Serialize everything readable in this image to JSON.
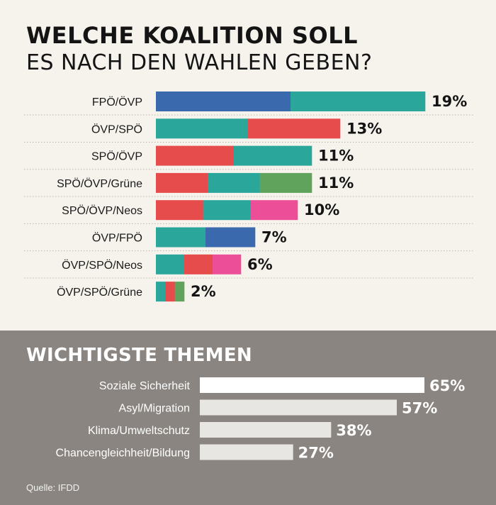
{
  "title_line1": "WELCHE KOALITION SOLL",
  "title_line2": "ES NACH DEN WAHLEN GEBEN?",
  "colors": {
    "fpo": "#3a6aad",
    "ovp": "#2aa79a",
    "spo": "#e74c4c",
    "gruene": "#5fa35c",
    "neos": "#ec4f98",
    "theme_top": "#ffffff",
    "theme_other": "#e8e6e3"
  },
  "chart_data": [
    {
      "type": "bar",
      "orientation": "horizontal",
      "stacked": true,
      "categories": [
        "FPÖ/ÖVP",
        "ÖVP/SPÖ",
        "SPÖ/ÖVP",
        "SPÖ/ÖVP/Grüne",
        "SPÖ/ÖVP/Neos",
        "ÖVP/FPÖ",
        "ÖVP/SPÖ/Neos",
        "ÖVP/SPÖ/Grüne"
      ],
      "values": [
        19,
        13,
        11,
        11,
        10,
        7,
        6,
        2
      ],
      "value_labels": [
        "19%",
        "13%",
        "11%",
        "11%",
        "10%",
        "7%",
        "6%",
        "2%"
      ],
      "segments": [
        [
          "fpo",
          "ovp"
        ],
        [
          "ovp",
          "spo"
        ],
        [
          "spo",
          "ovp"
        ],
        [
          "spo",
          "ovp",
          "gruene"
        ],
        [
          "spo",
          "ovp",
          "neos"
        ],
        [
          "ovp",
          "fpo"
        ],
        [
          "ovp",
          "spo",
          "neos"
        ],
        [
          "ovp",
          "spo",
          "gruene"
        ]
      ],
      "xlim": [
        0,
        19
      ]
    },
    {
      "type": "bar",
      "orientation": "horizontal",
      "title": "WICHTIGSTE THEMEN",
      "categories": [
        "Soziale Sicherheit",
        "Asyl/Migration",
        "Klima/Umweltschutz",
        "Chancengleichheit/Bildung"
      ],
      "values": [
        65,
        57,
        38,
        27
      ],
      "value_labels": [
        "65%",
        "57%",
        "38%",
        "27%"
      ],
      "xlim": [
        0,
        65
      ]
    }
  ],
  "source": "Quelle: IFDD"
}
